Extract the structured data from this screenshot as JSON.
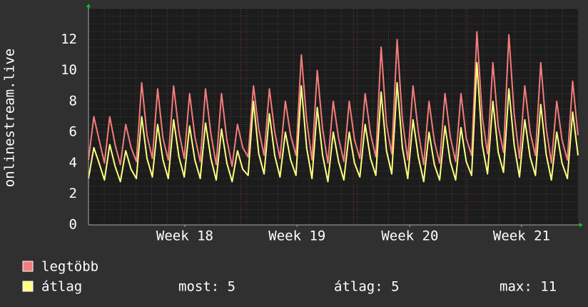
{
  "chart_data": {
    "type": "line",
    "ylabel": "onlinestream.live",
    "xlim": [
      0,
      92
    ],
    "xticks": [
      {
        "value": 18.1,
        "label": "Week 18"
      },
      {
        "value": 39.2,
        "label": "Week 19"
      },
      {
        "value": 60.4,
        "label": "Week 20"
      },
      {
        "value": 81.4,
        "label": "Week 21"
      }
    ],
    "ylim": [
      0,
      14
    ],
    "yticks": [
      0,
      2,
      4,
      6,
      8,
      10,
      12
    ],
    "grid": true,
    "series": [
      {
        "name": "legtöbb",
        "color": "#f47c7c",
        "values": [
          4.2,
          7,
          5.5,
          4,
          7,
          5.2,
          3.9,
          6.5,
          5,
          4.1,
          9.2,
          5.8,
          4.3,
          8.8,
          5.6,
          4.2,
          9,
          6,
          4.3,
          8.5,
          5.7,
          4.1,
          8.8,
          5.9,
          3.9,
          8.5,
          5.5,
          3.8,
          6.5,
          5,
          4.4,
          9,
          6.2,
          4.5,
          8.8,
          6,
          4.3,
          8,
          5.8,
          4.5,
          11,
          6.8,
          4.2,
          10,
          6.2,
          4,
          8,
          5.6,
          4.1,
          8,
          5.5,
          4.3,
          8.5,
          5.9,
          4.4,
          11.5,
          6.5,
          4.6,
          12,
          6.8,
          4.2,
          9,
          6,
          3.9,
          8,
          5.4,
          4,
          8.5,
          5.7,
          4.1,
          8.5,
          5.6,
          4.5,
          12.5,
          7,
          4.6,
          10.5,
          6.4,
          4.7,
          12.3,
          7.2,
          4.3,
          9,
          6,
          4.5,
          10.5,
          6.3,
          4,
          8,
          5.5,
          4.2,
          9.3,
          5.8
        ]
      },
      {
        "name": "átlag",
        "color": "#ffff80",
        "values": [
          3,
          5,
          4,
          2.9,
          5.2,
          3.8,
          2.8,
          4.8,
          3.6,
          3,
          7,
          4.3,
          3.1,
          6.5,
          4.2,
          3,
          6.8,
          4.4,
          3.1,
          6.4,
          4.2,
          3,
          6.6,
          4.3,
          2.9,
          6.2,
          4,
          2.8,
          4.8,
          3.6,
          3.2,
          8,
          4.6,
          3.3,
          7.2,
          4.5,
          3.1,
          6,
          4.2,
          3.2,
          9,
          5,
          3,
          7.6,
          4.5,
          2.8,
          6,
          4.1,
          2.9,
          6,
          4,
          3.1,
          6.5,
          4.3,
          3.2,
          8.6,
          4.8,
          3.3,
          9.2,
          5,
          3,
          6.8,
          4.4,
          2.8,
          6,
          3.9,
          2.9,
          6.4,
          4.1,
          2.9,
          6.3,
          4.1,
          3.2,
          10.5,
          5.2,
          3.3,
          8,
          4.7,
          3.4,
          8.8,
          5.2,
          3.1,
          6.8,
          4.4,
          3.2,
          7.8,
          4.6,
          2.9,
          6,
          4,
          3,
          7.3,
          4.5
        ]
      }
    ],
    "stats": [
      "most: 5",
      "átlag: 5",
      "max: 11"
    ]
  }
}
